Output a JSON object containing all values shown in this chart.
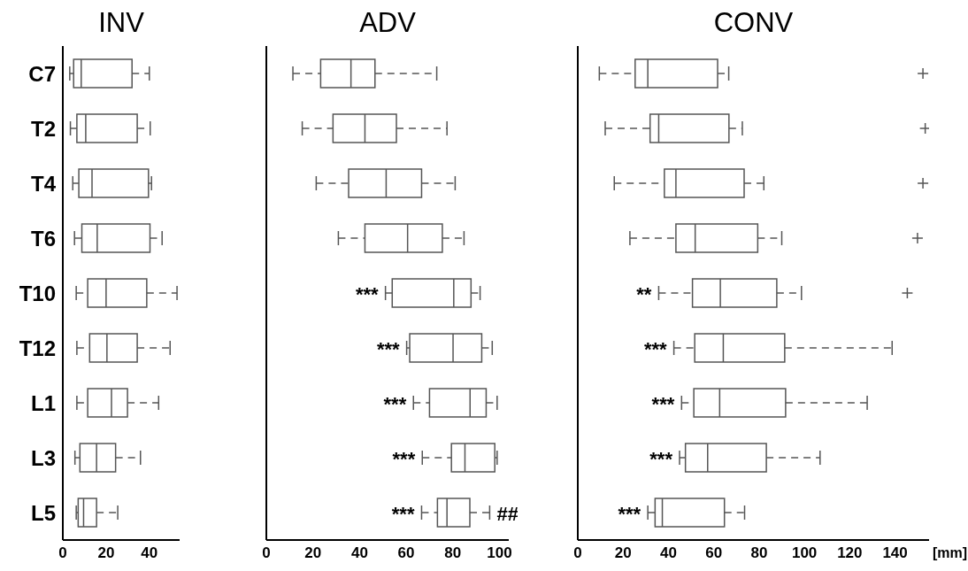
{
  "chart_data": [
    {
      "type": "box",
      "orientation": "horizontal",
      "title": "INV",
      "categories": [
        "C7",
        "T2",
        "T4",
        "T6",
        "T10",
        "T12",
        "L1",
        "L3",
        "L5"
      ],
      "xlim": [
        0,
        54
      ],
      "xticks": [
        0,
        20,
        40
      ],
      "boxes": [
        {
          "low": 3.2,
          "q1": 5,
          "median": 8.5,
          "q3": 32,
          "high": 40
        },
        {
          "low": 3.5,
          "q1": 6.5,
          "median": 10.6,
          "q3": 34.4,
          "high": 40.4
        },
        {
          "low": 4.6,
          "q1": 7.4,
          "median": 13.5,
          "q3": 39.6,
          "high": 41
        },
        {
          "low": 5.4,
          "q1": 8.8,
          "median": 15.9,
          "q3": 40.3,
          "high": 45.9
        },
        {
          "low": 6.2,
          "q1": 11.5,
          "median": 20,
          "q3": 38.8,
          "high": 52.8
        },
        {
          "low": 6.5,
          "q1": 12.4,
          "median": 20.4,
          "q3": 34.4,
          "high": 49.6
        },
        {
          "low": 6.5,
          "q1": 11.5,
          "median": 22.5,
          "q3": 29.9,
          "high": 44.3
        },
        {
          "low": 5.6,
          "q1": 7.9,
          "median": 15.6,
          "q3": 24.4,
          "high": 35.9
        },
        {
          "low": 6.2,
          "q1": 7.1,
          "median": 9.6,
          "q3": 15.6,
          "high": 25.4
        }
      ]
    },
    {
      "type": "box",
      "orientation": "horizontal",
      "title": "ADV",
      "categories": [
        "C7",
        "T2",
        "T4",
        "T6",
        "T10",
        "T12",
        "L1",
        "L3",
        "L5"
      ],
      "xlim": [
        0,
        104
      ],
      "xticks": [
        0,
        20,
        40,
        60,
        80,
        100
      ],
      "tick_labels": "x",
      "boxes": [
        {
          "low": 11.4,
          "q1": 23.3,
          "median": 36.3,
          "q3": 46.6,
          "high": 73.1
        },
        {
          "low": 15.4,
          "q1": 28.6,
          "median": 42.3,
          "q3": 55.8,
          "high": 77.5
        },
        {
          "low": 21.4,
          "q1": 35.3,
          "median": 51.4,
          "q3": 66.6,
          "high": 81
        },
        {
          "low": 30.9,
          "q1": 42.3,
          "median": 60.6,
          "q3": 75.5,
          "high": 84.8
        },
        {
          "low": 51.1,
          "q1": 54,
          "median": 80.4,
          "q3": 87.8,
          "high": 91.7
        },
        {
          "low": 60.2,
          "q1": 61.5,
          "median": 80.1,
          "q3": 92.4,
          "high": 96.9
        },
        {
          "low": 63.1,
          "q1": 70,
          "median": 87.4,
          "q3": 94.3,
          "high": 99
        },
        {
          "low": 66.9,
          "q1": 79.4,
          "median": 85.2,
          "q3": 98,
          "high": 99
        },
        {
          "low": 66.6,
          "q1": 73.4,
          "median": 77.5,
          "q3": 87.3,
          "high": 95.8
        }
      ],
      "annotations": [
        {
          "text": "***",
          "x": 51.1,
          "y": "T10"
        },
        {
          "text": "***",
          "x": 60.2,
          "y": "T12"
        },
        {
          "text": "***",
          "x": 63.1,
          "y": "L1"
        },
        {
          "text": "***",
          "x": 66.9,
          "y": "L3"
        },
        {
          "text": "***",
          "x": 66.6,
          "y": "L5"
        },
        {
          "text": "##",
          "x": 95.8,
          "y": "L5"
        }
      ]
    },
    {
      "type": "box",
      "orientation": "horizontal",
      "title": "CONV",
      "xlabel": "[mm]",
      "marker": "cross",
      "categories": [
        "C7",
        "T2",
        "T4",
        "T6",
        "T10",
        "T12",
        "L1",
        "L3",
        "L5"
      ],
      "xlim": [
        0,
        155
      ],
      "xticks": [
        0,
        20,
        40,
        60,
        80,
        100,
        120,
        140
      ],
      "tick_labels": "x",
      "boxes": [
        {
          "low": 9.5,
          "q1": 25.3,
          "median": 30.9,
          "q3": 61.7,
          "high": 66.6,
          "outliers": [
            152.3
          ]
        },
        {
          "low": 12.1,
          "q1": 31.9,
          "median": 35.7,
          "q3": 66.7,
          "high": 72.6,
          "outliers": [
            153.3
          ]
        },
        {
          "low": 16.1,
          "q1": 38.2,
          "median": 43.3,
          "q3": 73.4,
          "high": 82.1,
          "outliers": [
            152.3
          ]
        },
        {
          "low": 23,
          "q1": 43.3,
          "median": 51.8,
          "q3": 79.4,
          "high": 90,
          "outliers": [
            149.9
          ]
        },
        {
          "low": 35.7,
          "q1": 50.6,
          "median": 62.9,
          "q3": 87.8,
          "high": 98.7,
          "outliers": [
            145.4
          ]
        },
        {
          "low": 42.4,
          "q1": 51.6,
          "median": 64.2,
          "q3": 91.3,
          "high": 138.7
        },
        {
          "low": 45.8,
          "q1": 51.2,
          "median": 62.6,
          "q3": 91.7,
          "high": 127.7
        },
        {
          "low": 44.9,
          "q1": 47.5,
          "median": 57.3,
          "q3": 83.2,
          "high": 106.9
        },
        {
          "low": 30.9,
          "q1": 34.1,
          "median": 37.3,
          "q3": 64.7,
          "high": 73.6
        }
      ],
      "annotations": [
        {
          "text": "**",
          "x": 35.7,
          "y": "T10"
        },
        {
          "text": "***",
          "x": 42.4,
          "y": "T12"
        },
        {
          "text": "***",
          "x": 45.8,
          "y": "L1"
        },
        {
          "text": "***",
          "x": 44.9,
          "y": "L3"
        },
        {
          "text": "***",
          "x": 30.9,
          "y": "L5"
        }
      ]
    }
  ]
}
